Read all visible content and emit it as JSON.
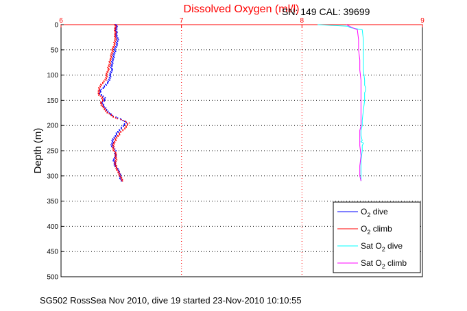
{
  "chart_data": {
    "type": "line",
    "title": "Dissolved Oxygen (ml/l)",
    "subtitle": "SN: 149  CAL: 39699",
    "ylabel": "Depth (m)",
    "footer": "SG502 RossSea Nov 2010, dive 19 started 23-Nov-2010 10:10:55",
    "xlim": [
      6,
      9
    ],
    "ylim": [
      0,
      500
    ],
    "y_reversed": true,
    "x_axis_position": "top",
    "grid": true,
    "xticks": [
      "6",
      "7",
      "8",
      "9"
    ],
    "yticks": [
      "0",
      "50",
      "100",
      "150",
      "200",
      "250",
      "300",
      "350",
      "400",
      "450",
      "500"
    ],
    "legend_position": "bottom-right",
    "colors": {
      "title": "#ff0000",
      "x_axis": "#ff0000",
      "grid": "#000000"
    },
    "series": [
      {
        "name": "O2 dive",
        "name_base": "O",
        "name_sub": "2",
        "name_suffix": " dive",
        "color": "#0000ff",
        "style": "dots",
        "x": [
          6.46,
          6.46,
          6.46,
          6.47,
          6.46,
          6.45,
          6.44,
          6.43,
          6.42,
          6.42,
          6.41,
          6.4,
          6.39,
          6.37,
          6.35,
          6.33,
          6.32,
          6.34,
          6.36,
          6.36,
          6.34,
          6.35,
          6.38,
          6.42,
          6.47,
          6.52,
          6.54,
          6.52,
          6.48,
          6.45,
          6.43,
          6.42,
          6.44,
          6.45,
          6.45,
          6.44,
          6.45,
          6.48,
          6.49,
          6.5
        ],
        "y": [
          0,
          10,
          20,
          30,
          40,
          50,
          60,
          70,
          80,
          90,
          100,
          110,
          115,
          120,
          125,
          130,
          135,
          140,
          145,
          150,
          155,
          160,
          170,
          180,
          185,
          190,
          195,
          200,
          210,
          220,
          230,
          240,
          245,
          250,
          260,
          270,
          280,
          290,
          300,
          310
        ]
      },
      {
        "name": "O2 climb",
        "name_base": "O",
        "name_sub": "2",
        "name_suffix": " climb",
        "color": "#ff0000",
        "style": "dots",
        "x": [
          6.45,
          6.45,
          6.45,
          6.45,
          6.44,
          6.43,
          6.42,
          6.41,
          6.4,
          6.39,
          6.38,
          6.37,
          6.35,
          6.33,
          6.31,
          6.32,
          6.34,
          6.35,
          6.33,
          6.35,
          6.39,
          6.45,
          6.52,
          6.56,
          6.53,
          6.49,
          6.46,
          6.44,
          6.43,
          6.45,
          6.46,
          6.45,
          6.46,
          6.48,
          6.5,
          6.51
        ],
        "y": [
          0,
          10,
          20,
          30,
          40,
          50,
          60,
          70,
          80,
          90,
          100,
          110,
          115,
          120,
          130,
          140,
          145,
          150,
          155,
          165,
          175,
          185,
          190,
          195,
          205,
          215,
          225,
          235,
          245,
          255,
          265,
          275,
          285,
          295,
          305,
          310
        ]
      },
      {
        "name": "Sat O2 dive",
        "name_base": "Sat O",
        "name_sub": "2",
        "name_suffix": " dive",
        "color": "#00ffff",
        "style": "line",
        "x": [
          8.13,
          8.38,
          8.4,
          8.5,
          8.51,
          8.51,
          8.51,
          8.51,
          8.52,
          8.52,
          8.53,
          8.53,
          8.52,
          8.52,
          8.51,
          8.5,
          8.5,
          8.49,
          8.49,
          8.5,
          8.49,
          8.5,
          8.51,
          8.5,
          8.5,
          8.49,
          8.49,
          8.49,
          8.49
        ],
        "y": [
          0,
          3,
          6,
          10,
          30,
          50,
          70,
          90,
          110,
          120,
          125,
          130,
          135,
          150,
          170,
          190,
          200,
          210,
          220,
          230,
          232,
          234,
          235,
          240,
          250,
          270,
          290,
          300,
          310
        ]
      },
      {
        "name": "Sat O2 climb",
        "name_base": "Sat O",
        "name_sub": "2",
        "name_suffix": " climb",
        "color": "#ff00ff",
        "style": "line",
        "x": [
          8.37,
          8.41,
          8.46,
          8.47,
          8.47,
          8.48,
          8.48,
          8.49,
          8.49,
          8.49,
          8.49,
          8.49,
          8.49,
          8.48,
          8.48,
          8.48,
          8.48,
          8.49,
          8.48,
          8.48,
          8.49
        ],
        "y": [
          0,
          5,
          10,
          30,
          50,
          70,
          90,
          110,
          130,
          150,
          170,
          190,
          200,
          210,
          220,
          230,
          240,
          260,
          280,
          300,
          310
        ]
      }
    ]
  }
}
